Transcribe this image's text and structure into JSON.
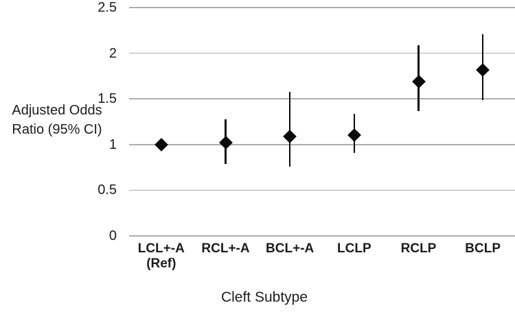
{
  "figure": {
    "background_color": "#ffffff",
    "text_color": "#1c1c1c",
    "gridline_color": "#adadad",
    "marker_color": "#0a0a0a"
  },
  "chart_data": {
    "type": "scatter",
    "subtype": "forest-plot-with-error-bars",
    "title": "",
    "xlabel": "Cleft Subtype",
    "ylabel": "Adjusted Odds Ratio (95% CI)",
    "ylabel_lines": [
      "Adjusted Odds",
      "Ratio (95% CI)"
    ],
    "ylim": [
      0,
      2.5
    ],
    "ytick_values": [
      2.5,
      2,
      1.5,
      1,
      0.5,
      0
    ],
    "ytick_labels": [
      "2.5",
      "2",
      "1.5",
      "1",
      "0.5",
      "0"
    ],
    "grid": "horizontal",
    "legend": "none",
    "marker": "diamond",
    "categories": [
      "LCL+-A (Ref)",
      "RCL+-A",
      "BCL+-A",
      "LCLP",
      "RCLP",
      "BCLP"
    ],
    "category_label_lines": [
      [
        "LCL+-A",
        "(Ref)"
      ],
      [
        "RCL+-A"
      ],
      [
        "BCL+-A"
      ],
      [
        "LCLP"
      ],
      [
        "RCLP"
      ],
      [
        "BCLP"
      ]
    ],
    "series": [
      {
        "name": "Adjusted Odds Ratio",
        "values": [
          1.0,
          1.02,
          1.09,
          1.1,
          1.69,
          1.82
        ],
        "ci_low": [
          null,
          0.79,
          0.76,
          0.91,
          1.37,
          1.49
        ],
        "ci_high": [
          null,
          1.28,
          1.58,
          1.34,
          2.09,
          2.21
        ]
      }
    ]
  }
}
